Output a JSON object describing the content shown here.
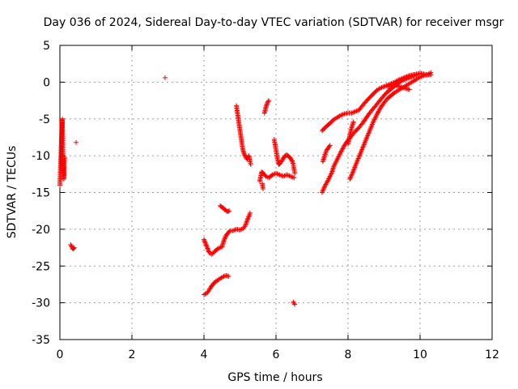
{
  "chart_data": {
    "type": "scatter",
    "title": "Day 036 of 2024, Sidereal Day-to-day VTEC variation (SDTVAR) for receiver msgr",
    "xlabel": "GPS time / hours",
    "ylabel": "SDTVAR / TECUs",
    "xlim": [
      0,
      12
    ],
    "ylim": [
      -35,
      5
    ],
    "x_ticks": [
      0,
      2,
      4,
      6,
      8,
      10,
      12
    ],
    "y_ticks": [
      5,
      0,
      -5,
      -10,
      -15,
      -20,
      -25,
      -30,
      -35
    ],
    "x_tick_labels": [
      "0",
      "2",
      "4",
      "6",
      "8",
      "10",
      "12"
    ],
    "y_tick_labels": [
      "5",
      "0",
      "-5",
      "-10",
      "-15",
      "-20",
      "-25",
      "-30",
      "-35"
    ],
    "grid": true,
    "legend": "none",
    "marker": "+",
    "color": "#ff0000",
    "series": [
      {
        "segments": [
          [
            [
              0.0,
              -14.0
            ],
            [
              0.01,
              -12.6
            ],
            [
              0.02,
              -11.2
            ],
            [
              0.03,
              -9.8
            ],
            [
              0.04,
              -8.4
            ],
            [
              0.05,
              -7.0
            ],
            [
              0.06,
              -5.6
            ],
            [
              0.07,
              -5.0
            ],
            [
              0.07,
              -6.2
            ],
            [
              0.08,
              -7.6
            ],
            [
              0.08,
              -9.0
            ],
            [
              0.09,
              -10.4
            ],
            [
              0.1,
              -11.8
            ],
            [
              0.11,
              -13.2
            ],
            [
              0.12,
              -12.4
            ],
            [
              0.12,
              -11.0
            ],
            [
              0.13,
              -10.2
            ]
          ],
          [
            [
              0.3,
              -22.1
            ],
            [
              0.33,
              -22.4
            ],
            [
              0.36,
              -22.7
            ],
            [
              0.4,
              -22.5
            ]
          ],
          [
            [
              0.45,
              -8.2
            ]
          ],
          [
            [
              2.92,
              0.6
            ]
          ],
          [
            [
              4.0,
              -21.4
            ],
            [
              4.05,
              -22.0
            ],
            [
              4.1,
              -22.6
            ],
            [
              4.15,
              -23.2
            ],
            [
              4.22,
              -23.4
            ],
            [
              4.3,
              -23.0
            ],
            [
              4.4,
              -22.6
            ],
            [
              4.5,
              -22.4
            ],
            [
              4.55,
              -21.6
            ],
            [
              4.6,
              -21.0
            ],
            [
              4.65,
              -20.6
            ],
            [
              4.72,
              -20.2
            ],
            [
              4.8,
              -20.2
            ],
            [
              4.9,
              -20.0
            ],
            [
              5.0,
              -20.1
            ],
            [
              5.08,
              -19.9
            ],
            [
              5.14,
              -19.6
            ],
            [
              5.2,
              -18.8
            ],
            [
              5.25,
              -18.2
            ],
            [
              5.28,
              -17.8
            ]
          ],
          [
            [
              4.45,
              -16.8
            ],
            [
              4.5,
              -17.0
            ],
            [
              4.55,
              -17.2
            ],
            [
              4.6,
              -17.4
            ],
            [
              4.65,
              -17.6
            ],
            [
              4.7,
              -17.5
            ]
          ],
          [
            [
              4.0,
              -28.9
            ],
            [
              4.1,
              -28.6
            ],
            [
              4.2,
              -27.8
            ],
            [
              4.28,
              -27.3
            ],
            [
              4.36,
              -27.0
            ],
            [
              4.45,
              -26.7
            ],
            [
              4.55,
              -26.4
            ],
            [
              4.62,
              -26.3
            ],
            [
              4.68,
              -26.4
            ]
          ],
          [
            [
              4.9,
              -3.2
            ],
            [
              4.93,
              -4.2
            ],
            [
              4.96,
              -5.2
            ],
            [
              4.99,
              -6.2
            ],
            [
              5.02,
              -7.2
            ],
            [
              5.05,
              -8.2
            ],
            [
              5.08,
              -9.2
            ],
            [
              5.12,
              -9.8
            ],
            [
              5.16,
              -10.2
            ],
            [
              5.2,
              -10.5
            ],
            [
              5.25,
              -10.0
            ],
            [
              5.28,
              -10.8
            ],
            [
              5.3,
              -11.2
            ]
          ],
          [
            [
              5.62,
              -13.8
            ],
            [
              5.64,
              -14.5
            ]
          ],
          [
            [
              5.68,
              -4.2
            ],
            [
              5.72,
              -3.4
            ],
            [
              5.76,
              -2.8
            ],
            [
              5.8,
              -2.5
            ]
          ],
          [
            [
              5.55,
              -13.5
            ],
            [
              5.6,
              -12.2
            ],
            [
              5.65,
              -12.4
            ],
            [
              5.72,
              -12.8
            ],
            [
              5.8,
              -13.0
            ],
            [
              5.9,
              -12.6
            ],
            [
              6.0,
              -12.4
            ],
            [
              6.1,
              -12.6
            ],
            [
              6.2,
              -12.8
            ],
            [
              6.3,
              -12.6
            ],
            [
              6.4,
              -12.8
            ],
            [
              6.5,
              -13.0
            ]
          ],
          [
            [
              5.95,
              -7.8
            ],
            [
              6.0,
              -9.2
            ],
            [
              6.04,
              -10.4
            ],
            [
              6.08,
              -11.2
            ],
            [
              6.12,
              -11.0
            ]
          ],
          [
            [
              6.15,
              -10.8
            ],
            [
              6.2,
              -10.4
            ],
            [
              6.25,
              -10.0
            ],
            [
              6.3,
              -9.9
            ],
            [
              6.35,
              -10.1
            ],
            [
              6.4,
              -10.3
            ],
            [
              6.45,
              -10.7
            ],
            [
              6.48,
              -11.2
            ],
            [
              6.5,
              -11.8
            ],
            [
              6.52,
              -12.4
            ]
          ],
          [
            [
              6.48,
              -29.9
            ],
            [
              6.52,
              -30.2
            ]
          ],
          [
            [
              7.28,
              -6.6
            ],
            [
              7.4,
              -6.0
            ],
            [
              7.5,
              -5.6
            ],
            [
              7.6,
              -5.1
            ],
            [
              7.7,
              -4.8
            ],
            [
              7.8,
              -4.5
            ],
            [
              7.9,
              -4.3
            ],
            [
              8.0,
              -4.2
            ],
            [
              8.1,
              -4.2
            ],
            [
              8.2,
              -4.0
            ],
            [
              8.3,
              -3.8
            ],
            [
              8.4,
              -3.2
            ],
            [
              8.5,
              -2.6
            ],
            [
              8.6,
              -2.1
            ],
            [
              8.7,
              -1.6
            ],
            [
              8.8,
              -1.1
            ],
            [
              8.9,
              -0.8
            ],
            [
              9.0,
              -0.6
            ],
            [
              9.1,
              -0.4
            ],
            [
              9.2,
              -0.2
            ],
            [
              9.3,
              0.0
            ],
            [
              9.4,
              0.3
            ],
            [
              9.5,
              0.5
            ],
            [
              9.6,
              0.7
            ],
            [
              9.7,
              0.9
            ],
            [
              9.8,
              1.0
            ],
            [
              9.9,
              1.1
            ],
            [
              10.0,
              1.2
            ],
            [
              10.1,
              1.1
            ],
            [
              10.2,
              1.0
            ],
            [
              10.3,
              1.3
            ]
          ],
          [
            [
              7.28,
              -15.0
            ],
            [
              7.35,
              -14.2
            ],
            [
              7.45,
              -13.3
            ],
            [
              7.55,
              -12.3
            ],
            [
              7.6,
              -11.5
            ],
            [
              7.7,
              -10.5
            ],
            [
              7.8,
              -9.5
            ],
            [
              7.9,
              -8.6
            ],
            [
              8.0,
              -7.9
            ],
            [
              8.1,
              -7.3
            ],
            [
              8.2,
              -6.7
            ],
            [
              8.3,
              -6.2
            ],
            [
              8.4,
              -5.6
            ],
            [
              8.5,
              -4.9
            ],
            [
              8.6,
              -4.2
            ],
            [
              8.7,
              -3.6
            ],
            [
              8.8,
              -3.0
            ],
            [
              8.9,
              -2.4
            ],
            [
              9.0,
              -1.8
            ],
            [
              9.1,
              -1.3
            ],
            [
              9.2,
              -0.9
            ],
            [
              9.3,
              -0.5
            ],
            [
              9.4,
              -0.1
            ],
            [
              9.5,
              0.2
            ],
            [
              9.6,
              0.4
            ],
            [
              9.7,
              0.6
            ],
            [
              9.8,
              0.8
            ],
            [
              9.9,
              1.0
            ],
            [
              10.0,
              1.1
            ]
          ],
          [
            [
              7.3,
              -10.8
            ],
            [
              7.35,
              -10.0
            ],
            [
              7.4,
              -9.3
            ],
            [
              7.5,
              -8.6
            ]
          ],
          [
            [
              8.05,
              -13.2
            ],
            [
              8.12,
              -12.4
            ],
            [
              8.2,
              -11.4
            ],
            [
              8.3,
              -10.2
            ],
            [
              8.4,
              -9.0
            ],
            [
              8.5,
              -7.8
            ],
            [
              8.6,
              -6.6
            ],
            [
              8.7,
              -5.4
            ],
            [
              8.8,
              -4.4
            ],
            [
              8.9,
              -3.5
            ],
            [
              9.0,
              -2.8
            ],
            [
              9.1,
              -2.2
            ],
            [
              9.2,
              -1.8
            ],
            [
              9.3,
              -1.4
            ],
            [
              9.4,
              -1.1
            ],
            [
              9.5,
              -0.8
            ],
            [
              9.6,
              -0.5
            ],
            [
              9.7,
              -0.2
            ],
            [
              9.8,
              0.1
            ],
            [
              9.9,
              0.4
            ],
            [
              10.0,
              0.7
            ],
            [
              10.1,
              0.9
            ],
            [
              10.2,
              1.0
            ],
            [
              10.3,
              1.0
            ]
          ],
          [
            [
              8.0,
              -8.4
            ],
            [
              8.05,
              -7.2
            ],
            [
              8.1,
              -6.2
            ],
            [
              8.15,
              -5.4
            ]
          ],
          [
            [
              9.1,
              -0.6
            ],
            [
              9.3,
              -0.4
            ],
            [
              9.5,
              -0.7
            ],
            [
              9.7,
              -1.0
            ]
          ]
        ]
      }
    ]
  }
}
